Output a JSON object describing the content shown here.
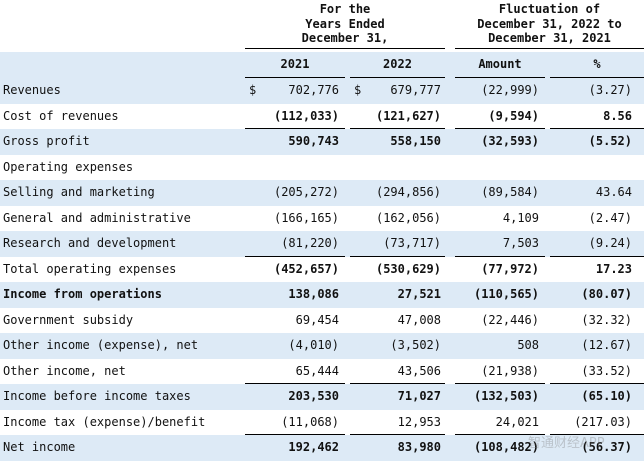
{
  "header": {
    "years": [
      "For the",
      "Years Ended",
      "December 31,"
    ],
    "fluctuation": [
      "Fluctuation of",
      "December 31, 2022 to",
      "December 31, 2021"
    ],
    "columns": [
      "2021",
      "2022",
      "Amount",
      "%"
    ]
  },
  "table": {
    "rows": [
      {
        "label": "Revenues",
        "currency": "$",
        "values": [
          "702,776",
          "679,777",
          "(22,999)",
          "(3.27)"
        ]
      },
      {
        "label": "Cost of revenues",
        "values": [
          "(112,033)",
          "(121,627)",
          "(9,594)",
          "8.56"
        ],
        "bold": true,
        "underline": true
      },
      {
        "label": "Gross profit",
        "values": [
          "590,743",
          "558,150",
          "(32,593)",
          "(5.52)"
        ],
        "bold": true
      },
      {
        "label": "Operating expenses",
        "values": []
      },
      {
        "label": "Selling and marketing",
        "values": [
          "(205,272)",
          "(294,856)",
          "(89,584)",
          "43.64"
        ]
      },
      {
        "label": "General and administrative",
        "values": [
          "(166,165)",
          "(162,056)",
          "4,109",
          "(2.47)"
        ]
      },
      {
        "label": "Research and development",
        "values": [
          "(81,220)",
          "(73,717)",
          "7,503",
          "(9.24)"
        ],
        "underline": true
      },
      {
        "label": "Total operating expenses",
        "values": [
          "(452,657)",
          "(530,629)",
          "(77,972)",
          "17.23"
        ],
        "bold": true
      },
      {
        "label": "Income from operations",
        "values": [
          "138,086",
          "27,521",
          "(110,565)",
          "(80.07)"
        ],
        "bold": true,
        "bold_label": true
      },
      {
        "label": "Government subsidy",
        "values": [
          "69,454",
          "47,008",
          "(22,446)",
          "(32.32)"
        ]
      },
      {
        "label": "Other income (expense), net",
        "values": [
          "(4,010)",
          "(3,502)",
          "508",
          "(12.67)"
        ]
      },
      {
        "label": "Other income, net",
        "values": [
          "65,444",
          "43,506",
          "(21,938)",
          "(33.52)"
        ],
        "underline": true
      },
      {
        "label": "Income before income taxes",
        "values": [
          "203,530",
          "71,027",
          "(132,503)",
          "(65.10)"
        ],
        "bold": true
      },
      {
        "label": "Income tax (expense)/benefit",
        "values": [
          "(11,068)",
          "12,953",
          "24,021",
          "(217.03)"
        ],
        "underline": true
      },
      {
        "label": "Net income",
        "values": [
          "192,462",
          "83,980",
          "(108,482)",
          "(56.37)"
        ],
        "bold": true
      }
    ]
  },
  "watermark": "智通财经APP"
}
